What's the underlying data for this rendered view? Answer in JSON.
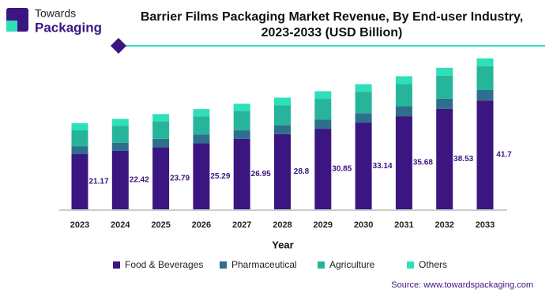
{
  "logo": {
    "line1": "Towards",
    "line2": "Packaging"
  },
  "chart_data": {
    "type": "stacked_bar",
    "title": "Barrier Films Packaging Market Revenue, By End-user Industry, 2023-2033 (USD Billion)",
    "x_label": "Year",
    "categories": [
      "2023",
      "2024",
      "2025",
      "2026",
      "2027",
      "2028",
      "2029",
      "2030",
      "2031",
      "2032",
      "2033"
    ],
    "series": [
      {
        "name": "Food & Beverages",
        "color": "#3b1680",
        "values": [
          21.17,
          22.42,
          23.79,
          25.29,
          26.95,
          28.8,
          30.85,
          33.14,
          35.68,
          38.53,
          41.7
        ],
        "labeled": true
      },
      {
        "name": "Pharmaceutical",
        "color": "#2e6f8e",
        "values": [
          3.0,
          3.1,
          3.2,
          3.3,
          3.4,
          3.5,
          3.6,
          3.7,
          3.8,
          3.9,
          4.0
        ]
      },
      {
        "name": "Agriculture",
        "color": "#26b59a",
        "values": [
          6.1,
          6.4,
          6.7,
          7.0,
          7.3,
          7.6,
          7.9,
          8.2,
          8.5,
          8.8,
          9.1
        ]
      },
      {
        "name": "Others",
        "color": "#2ee0b8",
        "values": [
          2.7,
          2.7,
          2.8,
          2.8,
          2.8,
          2.9,
          2.9,
          2.9,
          3.0,
          3.0,
          3.0
        ]
      }
    ],
    "source": "Source: www.towardspackaging.com"
  }
}
